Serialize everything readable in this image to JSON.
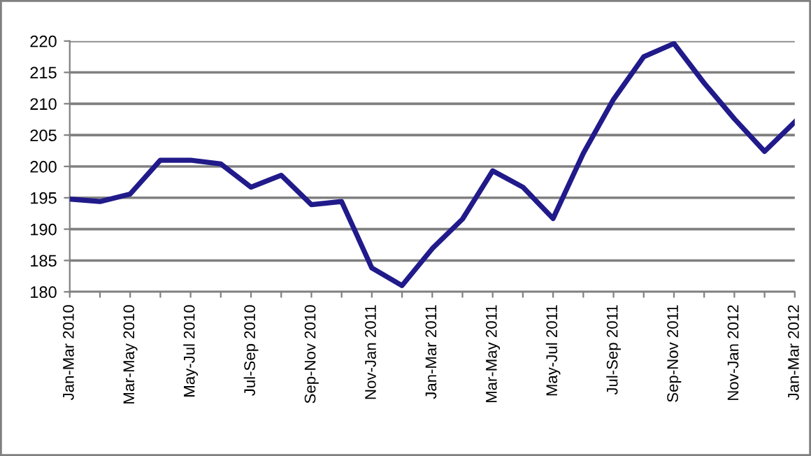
{
  "chart_data": {
    "type": "line",
    "categories": [
      "Jan-Mar 2010",
      null,
      "Mar-May 2010",
      null,
      "May-Jul 2010",
      null,
      "Jul-Sep 2010",
      null,
      "Sep-Nov 2010",
      null,
      "Nov-Jan 2011",
      null,
      "Jan-Mar 2011",
      null,
      "Mar-May 2011",
      null,
      "May-Jul 2011",
      null,
      "Jul-Sep 2011",
      null,
      "Sep-Nov 2011",
      null,
      "Nov-Jan 2012",
      null,
      "Jan-Mar 2012"
    ],
    "series": [
      {
        "color": "#211a8a",
        "values": [
          194.8,
          194.4,
          195.6,
          201.0,
          201.0,
          200.4,
          196.7,
          198.6,
          193.9,
          194.4,
          183.8,
          181.0,
          186.9,
          191.6,
          199.3,
          196.7,
          191.7,
          202.1,
          210.7,
          217.5,
          219.6,
          213.3,
          207.6,
          202.4,
          207.1
        ]
      }
    ],
    "ylim": [
      180,
      220
    ],
    "yticks": [
      180,
      185,
      190,
      195,
      200,
      205,
      210,
      215,
      220
    ],
    "grid": "y",
    "legend": false,
    "marker": "none",
    "line_style": "solid"
  }
}
